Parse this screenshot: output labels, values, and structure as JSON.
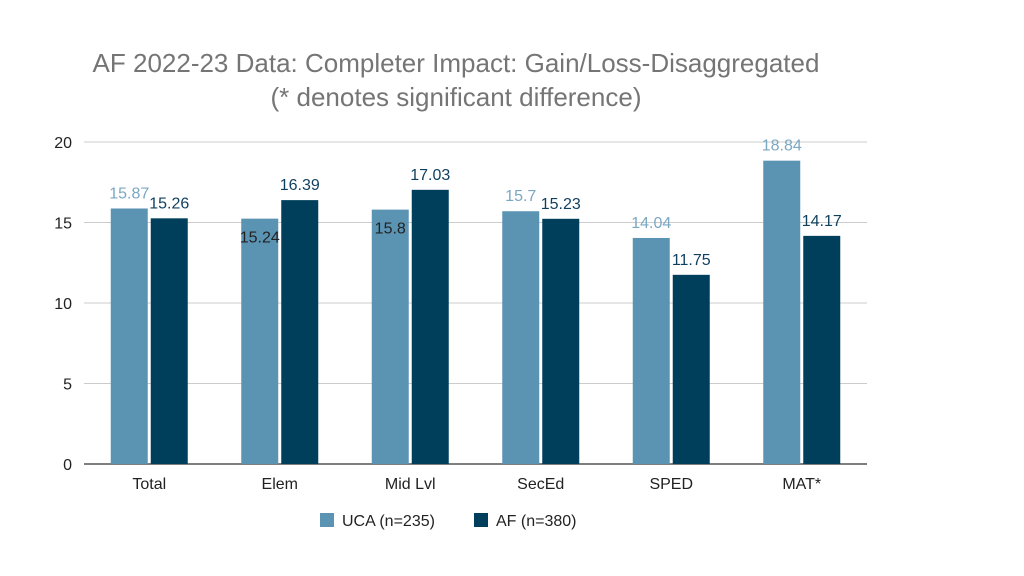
{
  "chart_data": {
    "type": "bar",
    "title": "AF 2022-23 Data: Completer Impact: Gain/Loss-Disaggregated",
    "subtitle": "(* denotes significant difference)",
    "xlabel": "",
    "ylabel": "",
    "ylim": [
      0,
      20
    ],
    "yticks": [
      0,
      5,
      10,
      15,
      20
    ],
    "grid": true,
    "legend_position": "bottom",
    "categories": [
      "Total",
      "Elem",
      "Mid Lvl",
      "SecEd",
      "SPED",
      "MAT*"
    ],
    "series": [
      {
        "name": "UCA (n=235)",
        "color": "#5b93b3",
        "label_color": "#7ba7c2",
        "values": [
          15.87,
          15.24,
          15.8,
          15.7,
          14.04,
          18.84
        ],
        "labels": [
          "15.87",
          "15.24",
          "15.8",
          "15.7",
          "14.04",
          "18.84"
        ]
      },
      {
        "name": "AF (n=380)",
        "color": "#003f5c",
        "label_color": "#0f3f5f",
        "values": [
          15.26,
          16.39,
          17.03,
          15.23,
          11.75,
          14.17
        ],
        "labels": [
          "15.26",
          "16.39",
          "17.03",
          "15.23",
          "11.75",
          "14.17"
        ]
      }
    ]
  }
}
